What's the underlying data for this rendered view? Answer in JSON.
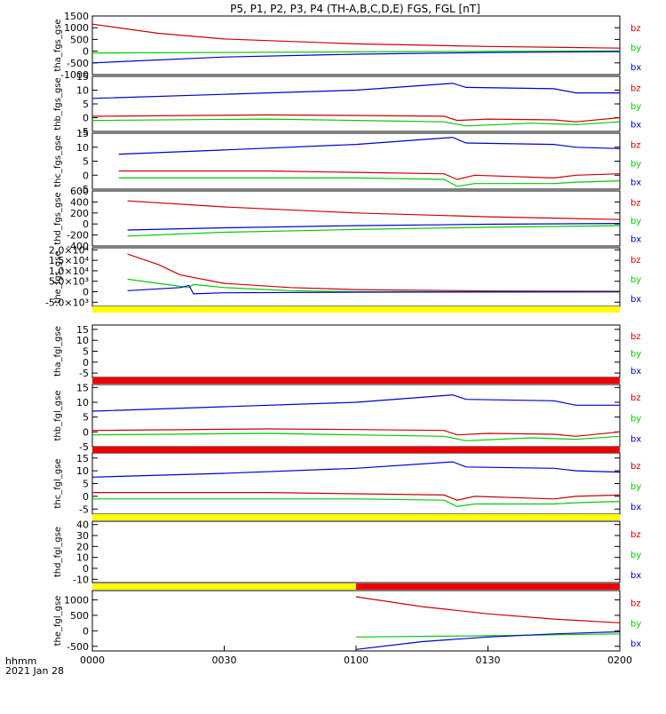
{
  "title": "P5, P1, P2, P3, P4 (TH-A,B,C,D,E) FGS, FGL [nT]",
  "colors": {
    "bx": "#0000cc",
    "by": "#00cc00",
    "bz": "#cc0000",
    "axis": "#000000",
    "flag_yellow": "#ffff00",
    "flag_red": "#ee0000"
  },
  "footer": {
    "x_unit": "hhmm",
    "date": "2021 Jan 28"
  },
  "chart_data": {
    "type": "line",
    "x_range": [
      "00:00",
      "02:00"
    ],
    "x_ticks": [
      "0000",
      "0030",
      "0100",
      "0130",
      "0200"
    ],
    "legend_labels": [
      "bz",
      "by",
      "bx"
    ],
    "panels": [
      {
        "ylabel": "tha_fgs_gse",
        "ylim": [
          -1000,
          1500
        ],
        "ytick_labels": [
          "1500",
          "1000",
          "500",
          "0",
          "-500",
          "-1000"
        ],
        "series": [
          {
            "name": "bz",
            "points": [
              [
                "00:00",
                1150
              ],
              [
                "00:15",
                760
              ],
              [
                "00:30",
                520
              ],
              [
                "01:00",
                310
              ],
              [
                "01:30",
                200
              ],
              [
                "02:00",
                130
              ]
            ]
          },
          {
            "name": "by",
            "points": [
              [
                "00:00",
                -80
              ],
              [
                "01:00",
                -30
              ],
              [
                "02:00",
                10
              ]
            ]
          },
          {
            "name": "bx",
            "points": [
              [
                "00:00",
                -500
              ],
              [
                "00:30",
                -250
              ],
              [
                "01:00",
                -130
              ],
              [
                "01:30",
                -60
              ],
              [
                "02:00",
                -20
              ]
            ]
          }
        ]
      },
      {
        "ylabel": "thb_fgs_gse",
        "ylim": [
          -5,
          15
        ],
        "ytick_labels": [
          "15",
          "10",
          "5",
          "0",
          "-5"
        ],
        "series": [
          {
            "name": "bz",
            "points": [
              [
                "00:00",
                0.5
              ],
              [
                "00:40",
                1.0
              ],
              [
                "01:00",
                0.8
              ],
              [
                "01:20",
                0.5
              ],
              [
                "01:23",
                -1.0
              ],
              [
                "01:30",
                -0.5
              ],
              [
                "01:45",
                -0.8
              ],
              [
                "01:50",
                -1.5
              ],
              [
                "02:00",
                0
              ]
            ]
          },
          {
            "name": "by",
            "points": [
              [
                "00:00",
                -1
              ],
              [
                "00:40",
                -0.5
              ],
              [
                "01:00",
                -1
              ],
              [
                "01:20",
                -1.5
              ],
              [
                "01:25",
                -3
              ],
              [
                "01:40",
                -2
              ],
              [
                "01:50",
                -2.5
              ],
              [
                "02:00",
                -1.5
              ]
            ]
          },
          {
            "name": "bx",
            "points": [
              [
                "00:00",
                7
              ],
              [
                "00:30",
                8.5
              ],
              [
                "01:00",
                10
              ],
              [
                "01:22",
                12.5
              ],
              [
                "01:25",
                11
              ],
              [
                "01:45",
                10.5
              ],
              [
                "01:50",
                9
              ],
              [
                "02:00",
                9
              ]
            ]
          }
        ]
      },
      {
        "ylabel": "thc_fgs_gse",
        "ylim": [
          -5,
          15
        ],
        "ytick_labels": [
          "15",
          "10",
          "5",
          "0",
          "-5"
        ],
        "series": [
          {
            "name": "bz",
            "points": [
              [
                "00:06",
                1.5
              ],
              [
                "00:40",
                1.5
              ],
              [
                "01:00",
                1.0
              ],
              [
                "01:20",
                0.5
              ],
              [
                "01:23",
                -1.5
              ],
              [
                "01:27",
                0
              ],
              [
                "01:45",
                -1
              ],
              [
                "01:50",
                0
              ],
              [
                "02:00",
                0.5
              ]
            ]
          },
          {
            "name": "by",
            "points": [
              [
                "00:06",
                -1
              ],
              [
                "01:00",
                -1
              ],
              [
                "01:20",
                -1.5
              ],
              [
                "01:23",
                -4
              ],
              [
                "01:27",
                -3
              ],
              [
                "01:45",
                -3
              ],
              [
                "01:50",
                -2.5
              ],
              [
                "02:00",
                -2
              ]
            ]
          },
          {
            "name": "bx",
            "points": [
              [
                "00:06",
                7.5
              ],
              [
                "00:30",
                9
              ],
              [
                "01:00",
                11
              ],
              [
                "01:22",
                13.5
              ],
              [
                "01:25",
                11.5
              ],
              [
                "01:45",
                11
              ],
              [
                "01:50",
                10
              ],
              [
                "02:00",
                9.5
              ]
            ]
          }
        ]
      },
      {
        "ylabel": "thd_fgs_gse",
        "ylim": [
          -400,
          600
        ],
        "ytick_labels": [
          "600",
          "400",
          "200",
          "0",
          "-200",
          "-400"
        ],
        "series": [
          {
            "name": "bz",
            "points": [
              [
                "00:08",
                420
              ],
              [
                "00:30",
                310
              ],
              [
                "01:00",
                200
              ],
              [
                "01:30",
                130
              ],
              [
                "02:00",
                80
              ]
            ]
          },
          {
            "name": "by",
            "points": [
              [
                "00:08",
                -220
              ],
              [
                "00:30",
                -150
              ],
              [
                "01:00",
                -100
              ],
              [
                "01:30",
                -60
              ],
              [
                "02:00",
                -30
              ]
            ]
          },
          {
            "name": "bx",
            "points": [
              [
                "00:08",
                -110
              ],
              [
                "00:30",
                -70
              ],
              [
                "01:00",
                -30
              ],
              [
                "01:30",
                -5
              ],
              [
                "02:00",
                10
              ]
            ]
          }
        ]
      },
      {
        "ylabel": "the_fgs_gse",
        "ylim": [
          -7000,
          21000
        ],
        "ytick_labels": [
          "2.0×10⁴",
          "1.5×10⁴",
          "1.0×10⁴",
          "5.0×10³",
          "0",
          "-5.0×10³"
        ],
        "series": [
          {
            "name": "bz",
            "points": [
              [
                "00:08",
                18000
              ],
              [
                "00:15",
                13000
              ],
              [
                "00:20",
                8000
              ],
              [
                "00:30",
                4000
              ],
              [
                "00:45",
                2000
              ],
              [
                "01:00",
                1000
              ],
              [
                "01:30",
                400
              ],
              [
                "02:00",
                200
              ]
            ]
          },
          {
            "name": "by",
            "points": [
              [
                "00:08",
                6000
              ],
              [
                "00:15",
                4000
              ],
              [
                "00:22",
                2000
              ],
              [
                "00:23",
                3500
              ],
              [
                "00:30",
                2000
              ],
              [
                "00:45",
                500
              ],
              [
                "01:00",
                0
              ],
              [
                "02:00",
                0
              ]
            ]
          },
          {
            "name": "bx",
            "points": [
              [
                "00:08",
                500
              ],
              [
                "00:20",
                2000
              ],
              [
                "00:22",
                3000
              ],
              [
                "00:23",
                -1000
              ],
              [
                "00:30",
                -500
              ],
              [
                "01:00",
                -200
              ],
              [
                "02:00",
                -100
              ]
            ]
          }
        ]
      },
      {
        "ylabel": "tha_fgl_gse",
        "ylim": [
          -7,
          17
        ],
        "ytick_labels": [
          "15",
          "10",
          "5",
          "0",
          "-5"
        ],
        "series": []
      },
      {
        "ylabel": "thb_fgl_gse",
        "ylim": [
          -5,
          16
        ],
        "ytick_labels": [
          "15",
          "10",
          "5",
          "0",
          "-5"
        ],
        "series": [
          {
            "name": "bz",
            "points": [
              [
                "00:00",
                0.5
              ],
              [
                "00:40",
                1.0
              ],
              [
                "01:00",
                0.8
              ],
              [
                "01:20",
                0.5
              ],
              [
                "01:23",
                -1.0
              ],
              [
                "01:30",
                -0.5
              ],
              [
                "01:45",
                -0.8
              ],
              [
                "01:50",
                -1.5
              ],
              [
                "02:00",
                0
              ]
            ]
          },
          {
            "name": "by",
            "points": [
              [
                "00:00",
                -1
              ],
              [
                "00:40",
                -0.5
              ],
              [
                "01:00",
                -1
              ],
              [
                "01:20",
                -1.5
              ],
              [
                "01:25",
                -3
              ],
              [
                "01:40",
                -2
              ],
              [
                "01:50",
                -2.5
              ],
              [
                "02:00",
                -1.5
              ]
            ]
          },
          {
            "name": "bx",
            "points": [
              [
                "00:00",
                7
              ],
              [
                "00:30",
                8.5
              ],
              [
                "01:00",
                10
              ],
              [
                "01:22",
                12.5
              ],
              [
                "01:25",
                11
              ],
              [
                "01:45",
                10.5
              ],
              [
                "01:50",
                9
              ],
              [
                "02:00",
                9
              ]
            ]
          }
        ]
      },
      {
        "ylabel": "thc_fgl_gse",
        "ylim": [
          -7,
          17
        ],
        "ytick_labels": [
          "15",
          "10",
          "5",
          "0",
          "-5"
        ],
        "series": [
          {
            "name": "bz",
            "points": [
              [
                "00:00",
                1.5
              ],
              [
                "00:40",
                1.5
              ],
              [
                "01:00",
                1.0
              ],
              [
                "01:20",
                0.5
              ],
              [
                "01:23",
                -1.5
              ],
              [
                "01:27",
                0
              ],
              [
                "01:45",
                -1
              ],
              [
                "01:50",
                0
              ],
              [
                "02:00",
                0.5
              ]
            ]
          },
          {
            "name": "by",
            "points": [
              [
                "00:00",
                -1
              ],
              [
                "01:00",
                -1
              ],
              [
                "01:20",
                -1.5
              ],
              [
                "01:23",
                -4
              ],
              [
                "01:27",
                -3
              ],
              [
                "01:45",
                -3
              ],
              [
                "01:50",
                -2.5
              ],
              [
                "02:00",
                -2
              ]
            ]
          },
          {
            "name": "bx",
            "points": [
              [
                "00:00",
                7.5
              ],
              [
                "00:30",
                9
              ],
              [
                "01:00",
                11
              ],
              [
                "01:22",
                13.5
              ],
              [
                "01:25",
                11.5
              ],
              [
                "01:45",
                11
              ],
              [
                "01:50",
                10
              ],
              [
                "02:00",
                9.5
              ]
            ]
          }
        ]
      },
      {
        "ylabel": "thd_fgl_gse",
        "ylim": [
          -13,
          43
        ],
        "ytick_labels": [
          "40",
          "30",
          "20",
          "10",
          "0",
          "-10"
        ],
        "series": []
      },
      {
        "ylabel": "the_fgl_gse",
        "ylim": [
          -650,
          1300
        ],
        "ytick_labels": [
          "1000",
          "500",
          "0",
          "-500"
        ],
        "series": [
          {
            "name": "bz",
            "points": [
              [
                "01:00",
                1100
              ],
              [
                "01:15",
                780
              ],
              [
                "01:30",
                550
              ],
              [
                "01:45",
                380
              ],
              [
                "02:00",
                260
              ]
            ]
          },
          {
            "name": "by",
            "points": [
              [
                "01:00",
                -200
              ],
              [
                "01:30",
                -160
              ],
              [
                "02:00",
                -100
              ]
            ]
          },
          {
            "name": "bx",
            "points": [
              [
                "01:00",
                -600
              ],
              [
                "01:15",
                -350
              ],
              [
                "01:30",
                -200
              ],
              [
                "01:45",
                -100
              ],
              [
                "02:00",
                -30
              ]
            ]
          }
        ]
      }
    ],
    "flag_bars": [
      {
        "segments": [
          {
            "from": "00:00",
            "to": "02:00",
            "color": "yellow"
          }
        ]
      },
      {
        "segments": [
          {
            "from": "00:00",
            "to": "02:00",
            "color": "red"
          }
        ]
      },
      {
        "segments": [
          {
            "from": "00:00",
            "to": "02:00",
            "color": "red"
          }
        ]
      },
      {
        "segments": [
          {
            "from": "00:00",
            "to": "02:00",
            "color": "yellow"
          }
        ]
      },
      {
        "segments": [
          {
            "from": "00:00",
            "to": "01:00",
            "color": "yellow"
          },
          {
            "from": "01:00",
            "to": "02:00",
            "color": "red"
          }
        ]
      }
    ]
  }
}
